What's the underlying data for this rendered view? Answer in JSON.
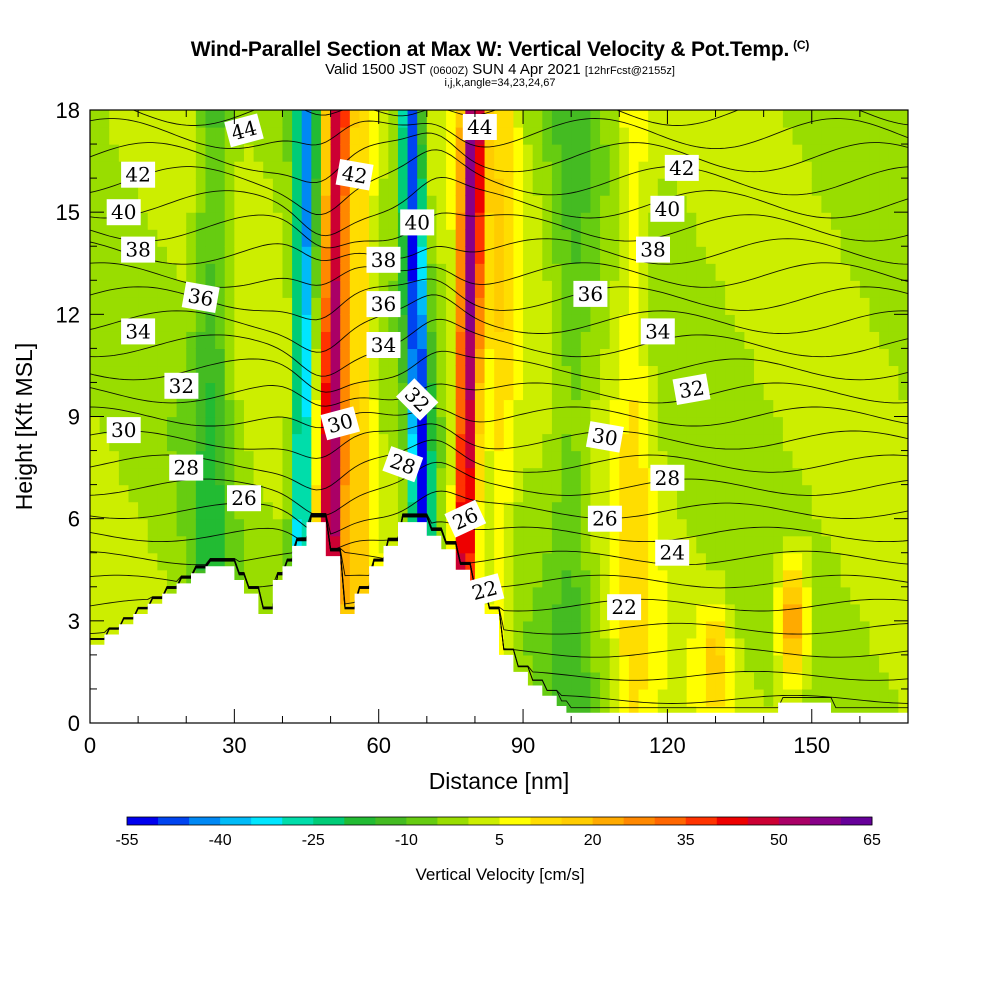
{
  "title": {
    "main": "Wind-Parallel Section at Max W: Vertical Velocity & Pot.Temp.",
    "copyright": "(C)",
    "valid_prefix": "Valid 1500 JST",
    "valid_z": "(0600Z)",
    "valid_date": "SUN 4 Apr 2021",
    "valid_fcst": "[12hrFcst@2155z]",
    "params": "i,j,k,angle=34,23,24,67"
  },
  "chart_data": {
    "type": "heatmap",
    "xlabel": "Distance [nm]",
    "ylabel": "Height [Kft MSL]",
    "xlim": [
      0,
      170
    ],
    "ylim": [
      0,
      18
    ],
    "x_ticks": [
      0,
      30,
      60,
      90,
      120,
      150
    ],
    "y_ticks": [
      0,
      3,
      6,
      9,
      12,
      15,
      18
    ],
    "colorbar": {
      "title": "Vertical Velocity [cm/s]",
      "tick_labels": [
        "-55",
        "-40",
        "-25",
        "-10",
        "5",
        "20",
        "35",
        "50",
        "65"
      ],
      "bins": [
        -55,
        65
      ],
      "colors": [
        "#0000ee",
        "#0044f0",
        "#0088f4",
        "#00bbf8",
        "#00e6ff",
        "#00ddaa",
        "#00cc77",
        "#22bb33",
        "#44bb22",
        "#66cc11",
        "#99dd00",
        "#ccee00",
        "#ffff00",
        "#ffdd00",
        "#ffcc00",
        "#ffaa00",
        "#ff8800",
        "#ff6600",
        "#ff3300",
        "#ee0000",
        "#cc0033",
        "#aa0066",
        "#880088",
        "#660099"
      ]
    },
    "potential_temperature_contour_labels": [
      {
        "value": "44",
        "x": 32,
        "y": 17.4,
        "angle": -15
      },
      {
        "value": "44",
        "x": 81,
        "y": 17.5,
        "angle": 0
      },
      {
        "value": "42",
        "x": 10,
        "y": 16.1,
        "angle": 0
      },
      {
        "value": "42",
        "x": 55,
        "y": 16.1,
        "angle": 10
      },
      {
        "value": "42",
        "x": 123,
        "y": 16.3,
        "angle": 0
      },
      {
        "value": "40",
        "x": 7,
        "y": 15.0,
        "angle": 0
      },
      {
        "value": "40",
        "x": 68,
        "y": 14.7,
        "angle": 0
      },
      {
        "value": "40",
        "x": 120,
        "y": 15.1,
        "angle": 0
      },
      {
        "value": "38",
        "x": 10,
        "y": 13.9,
        "angle": 0
      },
      {
        "value": "38",
        "x": 61,
        "y": 13.6,
        "angle": 0
      },
      {
        "value": "38",
        "x": 117,
        "y": 13.9,
        "angle": 0
      },
      {
        "value": "36",
        "x": 23,
        "y": 12.5,
        "angle": 10
      },
      {
        "value": "36",
        "x": 61,
        "y": 12.3,
        "angle": 0
      },
      {
        "value": "36",
        "x": 104,
        "y": 12.6,
        "angle": 0
      },
      {
        "value": "34",
        "x": 10,
        "y": 11.5,
        "angle": 0
      },
      {
        "value": "34",
        "x": 61,
        "y": 11.1,
        "angle": 0
      },
      {
        "value": "34",
        "x": 118,
        "y": 11.5,
        "angle": 0
      },
      {
        "value": "32",
        "x": 19,
        "y": 9.9,
        "angle": 0
      },
      {
        "value": "32",
        "x": 68,
        "y": 9.5,
        "angle": 45
      },
      {
        "value": "32",
        "x": 125,
        "y": 9.8,
        "angle": -10
      },
      {
        "value": "30",
        "x": 7,
        "y": 8.6,
        "angle": 0
      },
      {
        "value": "30",
        "x": 52,
        "y": 8.8,
        "angle": -15
      },
      {
        "value": "30",
        "x": 107,
        "y": 8.4,
        "angle": 10
      },
      {
        "value": "28",
        "x": 20,
        "y": 7.5,
        "angle": 0
      },
      {
        "value": "28",
        "x": 65,
        "y": 7.6,
        "angle": 20
      },
      {
        "value": "28",
        "x": 120,
        "y": 7.2,
        "angle": 0
      },
      {
        "value": "26",
        "x": 32,
        "y": 6.6,
        "angle": 0
      },
      {
        "value": "26",
        "x": 78,
        "y": 6.0,
        "angle": -25
      },
      {
        "value": "26",
        "x": 107,
        "y": 6.0,
        "angle": 0
      },
      {
        "value": "24",
        "x": 121,
        "y": 5.0,
        "angle": 0
      },
      {
        "value": "22",
        "x": 82,
        "y": 3.9,
        "angle": -15
      },
      {
        "value": "22",
        "x": 111,
        "y": 3.4,
        "angle": 0
      }
    ],
    "terrain_profile": {
      "x": [
        0,
        3,
        3,
        6,
        6,
        9,
        9,
        12,
        12,
        15,
        15,
        18,
        18,
        21,
        21,
        24,
        24,
        30,
        30,
        32,
        32,
        35,
        35,
        38,
        38,
        40,
        40,
        42,
        42,
        45,
        45,
        48,
        48,
        49,
        49,
        52,
        52,
        55,
        55,
        58,
        58,
        61,
        61,
        64,
        64,
        67,
        67,
        70,
        70,
        73,
        73,
        76,
        76,
        79,
        79,
        82,
        82,
        85,
        85,
        88,
        88,
        91,
        91,
        94,
        94,
        97,
        97,
        99,
        99,
        143,
        143,
        154,
        154,
        165,
        165,
        170
      ],
      "y": [
        2.3,
        2.3,
        2.6,
        2.6,
        2.9,
        2.9,
        3.2,
        3.2,
        3.5,
        3.5,
        3.8,
        3.8,
        4.1,
        4.1,
        4.4,
        4.4,
        4.6,
        4.6,
        4.2,
        4.2,
        3.8,
        3.8,
        3.2,
        3.2,
        4.2,
        4.2,
        4.6,
        4.6,
        5.2,
        5.2,
        5.9,
        5.9,
        5.9,
        5.9,
        4.9,
        4.9,
        3.2,
        3.2,
        3.8,
        3.8,
        4.6,
        4.6,
        5.2,
        5.2,
        5.9,
        5.9,
        5.9,
        5.9,
        5.5,
        5.5,
        5.1,
        5.1,
        4.5,
        4.5,
        3.8,
        3.8,
        3.2,
        3.2,
        2.0,
        2.0,
        1.5,
        1.5,
        1.1,
        1.1,
        0.8,
        0.8,
        0.5,
        0.5,
        0.3,
        0.3,
        0.6,
        0.6,
        0.3,
        0.3,
        0.3,
        0.3
      ]
    }
  }
}
